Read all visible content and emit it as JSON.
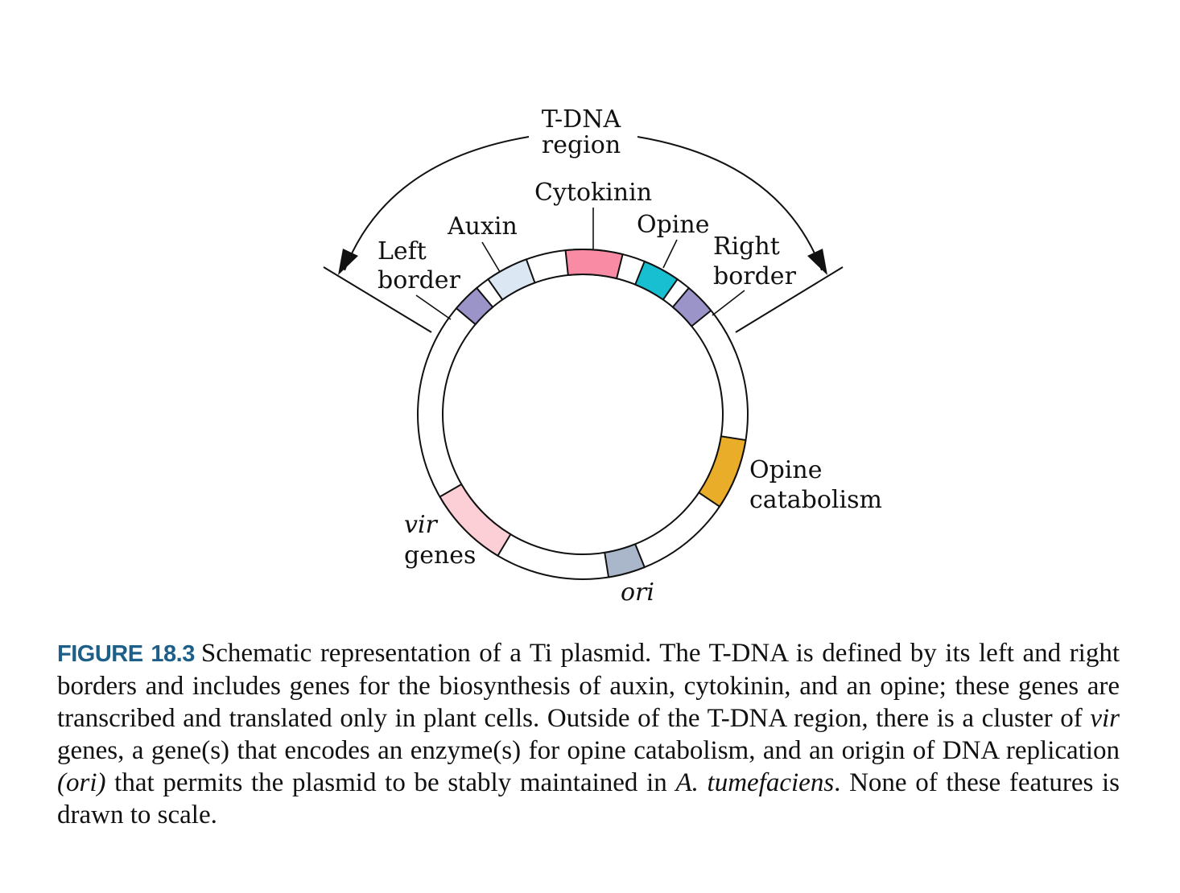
{
  "colors": {
    "border_segment": "#9a94c8",
    "auxin": "#dbe7f3",
    "cytokinin": "#f98ba4",
    "opine": "#18bfd0",
    "opine_catabolism": "#e9ad2a",
    "ori": "#aab6c9",
    "vir_genes": "#fccfd6",
    "caption_label": "#1e5f8a"
  },
  "diagram": {
    "tdna_label_line1": "T-DNA",
    "tdna_label_line2": "region",
    "labels": {
      "left_border_line1": "Left",
      "left_border_line2": "border",
      "auxin": "Auxin",
      "cytokinin": "Cytokinin",
      "opine": "Opine",
      "right_border_line1": "Right",
      "right_border_line2": "border",
      "opine_catabolism_line1": "Opine",
      "opine_catabolism_line2": "catabolism",
      "vir_italic": "vir",
      "vir_genes_word": "genes",
      "ori": "ori"
    }
  },
  "caption": {
    "label": "FIGURE 18.3",
    "part1": "Schematic representation of a Ti plasmid. The T-DNA is defined by its left and right borders and includes genes for the biosynthesis of auxin, cytokinin, and an opine; these genes are transcribed and translated only in plant cells. Outside of the T-DNA region, there is a cluster of ",
    "vir": "vir",
    "part2": " genes, a gene(s) that encodes an enzyme(s) for opine catabolism, and an origin of DNA replication ",
    "ori": "(ori)",
    "part3": " that permits the plasmid to be stably maintained in ",
    "species": "A. tumefaciens",
    "part4": ". None of these features is drawn to scale."
  }
}
